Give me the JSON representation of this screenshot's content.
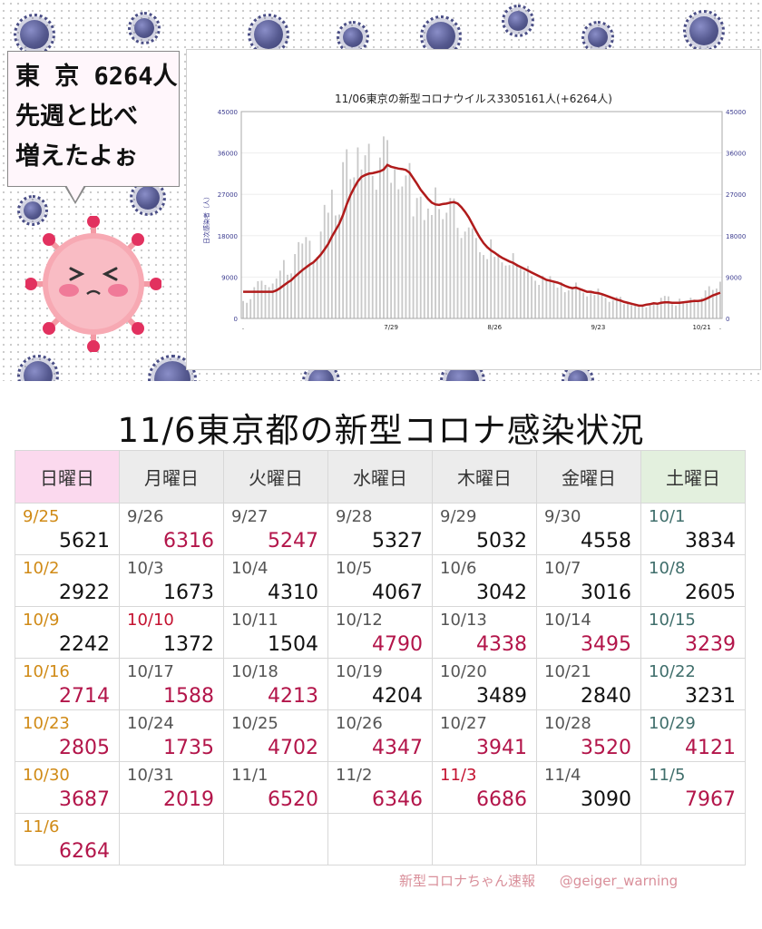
{
  "bubble": {
    "line1": "東 京 6264人",
    "line2": "先週と比べ",
    "line3": "増えたよぉ"
  },
  "colors": {
    "curve": "#b01b1b",
    "bars": "#c9c9c9",
    "axis_text": "#3b3b8f",
    "increase": "#b3154a",
    "sunday_date": "#d08a16",
    "holiday_date": "#c41230"
  },
  "chart_data": {
    "type": "bar",
    "title": "11/06東京の新型コロナウイルス3305161人(+6264人)",
    "ylabel": "日次感染者（人）",
    "ylim": [
      0,
      45000
    ],
    "yticks": [
      "45000",
      "36000",
      "27000",
      "18000",
      "9000",
      "0"
    ],
    "xticks": [
      {
        "label": ".",
        "day": 0
      },
      {
        "label": "7/29",
        "day": 40
      },
      {
        "label": "8/26",
        "day": 68
      },
      {
        "label": "9/23",
        "day": 96
      },
      {
        "label": "10/21",
        "day": 124
      },
      {
        "label": ".",
        "day": 129
      }
    ],
    "series": [
      {
        "name": "daily cases",
        "type": "bar",
        "values": [
          3800,
          3400,
          4200,
          6800,
          8100,
          8200,
          7300,
          6800,
          7600,
          8700,
          10400,
          12700,
          9500,
          9800,
          14000,
          16600,
          16300,
          17700,
          16900,
          12300,
          13400,
          18900,
          24700,
          23000,
          28000,
          22400,
          22600,
          34000,
          36800,
          30300,
          30700,
          37200,
          32400,
          35500,
          38000,
          31000,
          28000,
          35000,
          39600,
          38800,
          29500,
          32500,
          28100,
          28700,
          31100,
          33800,
          22200,
          26200,
          26500,
          21400,
          23900,
          22500,
          28500,
          23800,
          21600,
          23000,
          26200,
          26100,
          19700,
          17500,
          18900,
          19800,
          19600,
          17500,
          14400,
          13800,
          12900,
          17200,
          13400,
          14100,
          12200,
          11500,
          11600,
          14200,
          11900,
          10900,
          10300,
          11400,
          9200,
          8200,
          7300,
          9300,
          8600,
          9200,
          8000,
          6700,
          7900,
          5700,
          6100,
          6700,
          7800,
          6500,
          5600,
          4800,
          5600,
          5100,
          6500,
          5300,
          4500,
          3600,
          4000,
          4700,
          4700,
          3100,
          3300,
          2900,
          3200,
          2500,
          3000,
          2400,
          2800,
          3200,
          3300,
          4500,
          4900,
          4800,
          3100,
          2800,
          4300,
          3600,
          3300,
          4500,
          4100,
          3800,
          4500,
          6100,
          7000,
          6200,
          6500,
          8000
        ]
      },
      {
        "name": "7-day average",
        "type": "line",
        "values": [
          5800,
          5800,
          5800,
          5800,
          5800,
          5800,
          5800,
          5800,
          5800,
          6100,
          6600,
          7200,
          7800,
          8300,
          9100,
          9800,
          10500,
          11100,
          11700,
          12200,
          13000,
          13900,
          15000,
          16200,
          17800,
          19200,
          20600,
          22500,
          24800,
          26800,
          28400,
          29800,
          30800,
          31200,
          31500,
          31600,
          31800,
          32000,
          32400,
          33400,
          33000,
          32800,
          32600,
          32500,
          32300,
          31700,
          30500,
          29300,
          28000,
          27000,
          26000,
          25200,
          24800,
          24700,
          24900,
          25000,
          25200,
          25300,
          25000,
          24200,
          23200,
          22000,
          20500,
          19000,
          17600,
          16400,
          15500,
          14800,
          14300,
          13700,
          13200,
          12800,
          12400,
          12100,
          11600,
          11200,
          10800,
          10400,
          10000,
          9600,
          9200,
          8800,
          8400,
          8200,
          8000,
          7800,
          7500,
          7100,
          6800,
          6600,
          6700,
          6400,
          6100,
          5800,
          5800,
          5600,
          5500,
          5300,
          5000,
          4700,
          4400,
          4100,
          3900,
          3600,
          3400,
          3200,
          3000,
          2800,
          2800,
          3000,
          3100,
          3300,
          3200,
          3400,
          3500,
          3500,
          3400,
          3400,
          3400,
          3500,
          3600,
          3700,
          3800,
          3800,
          3900,
          4200,
          4600,
          5000,
          5300,
          5600
        ]
      }
    ]
  },
  "table": {
    "title": "11/6東京都の新型コロナ感染状況",
    "headers": [
      "日曜日",
      "月曜日",
      "火曜日",
      "水曜日",
      "木曜日",
      "金曜日",
      "土曜日"
    ],
    "rows": [
      [
        {
          "date": "9/25",
          "count": "5621",
          "dc": "orange",
          "up": false
        },
        {
          "date": "9/26",
          "count": "6316",
          "dc": "",
          "up": true
        },
        {
          "date": "9/27",
          "count": "5247",
          "dc": "",
          "up": true
        },
        {
          "date": "9/28",
          "count": "5327",
          "dc": "",
          "up": false
        },
        {
          "date": "9/29",
          "count": "5032",
          "dc": "",
          "up": false
        },
        {
          "date": "9/30",
          "count": "4558",
          "dc": "",
          "up": false
        },
        {
          "date": "10/1",
          "count": "3834",
          "dc": "teal",
          "up": false
        }
      ],
      [
        {
          "date": "10/2",
          "count": "2922",
          "dc": "orange",
          "up": false
        },
        {
          "date": "10/3",
          "count": "1673",
          "dc": "",
          "up": false
        },
        {
          "date": "10/4",
          "count": "4310",
          "dc": "",
          "up": false
        },
        {
          "date": "10/5",
          "count": "4067",
          "dc": "",
          "up": false
        },
        {
          "date": "10/6",
          "count": "3042",
          "dc": "",
          "up": false
        },
        {
          "date": "10/7",
          "count": "3016",
          "dc": "",
          "up": false
        },
        {
          "date": "10/8",
          "count": "2605",
          "dc": "teal",
          "up": false
        }
      ],
      [
        {
          "date": "10/9",
          "count": "2242",
          "dc": "orange",
          "up": false
        },
        {
          "date": "10/10",
          "count": "1372",
          "dc": "red",
          "up": false
        },
        {
          "date": "10/11",
          "count": "1504",
          "dc": "",
          "up": false
        },
        {
          "date": "10/12",
          "count": "4790",
          "dc": "",
          "up": true
        },
        {
          "date": "10/13",
          "count": "4338",
          "dc": "",
          "up": true
        },
        {
          "date": "10/14",
          "count": "3495",
          "dc": "",
          "up": true
        },
        {
          "date": "10/15",
          "count": "3239",
          "dc": "teal",
          "up": true
        }
      ],
      [
        {
          "date": "10/16",
          "count": "2714",
          "dc": "orange",
          "up": true
        },
        {
          "date": "10/17",
          "count": "1588",
          "dc": "",
          "up": true
        },
        {
          "date": "10/18",
          "count": "4213",
          "dc": "",
          "up": true
        },
        {
          "date": "10/19",
          "count": "4204",
          "dc": "",
          "up": false
        },
        {
          "date": "10/20",
          "count": "3489",
          "dc": "",
          "up": false
        },
        {
          "date": "10/21",
          "count": "2840",
          "dc": "",
          "up": false
        },
        {
          "date": "10/22",
          "count": "3231",
          "dc": "teal",
          "up": false
        }
      ],
      [
        {
          "date": "10/23",
          "count": "2805",
          "dc": "orange",
          "up": true
        },
        {
          "date": "10/24",
          "count": "1735",
          "dc": "",
          "up": true
        },
        {
          "date": "10/25",
          "count": "4702",
          "dc": "",
          "up": true
        },
        {
          "date": "10/26",
          "count": "4347",
          "dc": "",
          "up": true
        },
        {
          "date": "10/27",
          "count": "3941",
          "dc": "",
          "up": true
        },
        {
          "date": "10/28",
          "count": "3520",
          "dc": "",
          "up": true
        },
        {
          "date": "10/29",
          "count": "4121",
          "dc": "teal",
          "up": true
        }
      ],
      [
        {
          "date": "10/30",
          "count": "3687",
          "dc": "orange",
          "up": true
        },
        {
          "date": "10/31",
          "count": "2019",
          "dc": "",
          "up": true
        },
        {
          "date": "11/1",
          "count": "6520",
          "dc": "",
          "up": true
        },
        {
          "date": "11/2",
          "count": "6346",
          "dc": "",
          "up": true
        },
        {
          "date": "11/3",
          "count": "6686",
          "dc": "red",
          "up": true
        },
        {
          "date": "11/4",
          "count": "3090",
          "dc": "",
          "up": false
        },
        {
          "date": "11/5",
          "count": "7967",
          "dc": "teal",
          "up": true
        }
      ],
      [
        {
          "date": "11/6",
          "count": "6264",
          "dc": "orange",
          "up": true
        },
        null,
        null,
        null,
        null,
        null,
        null
      ]
    ]
  },
  "footer": {
    "brand": "新型コロナちゃん速報",
    "handle": "@geiger_warning"
  }
}
